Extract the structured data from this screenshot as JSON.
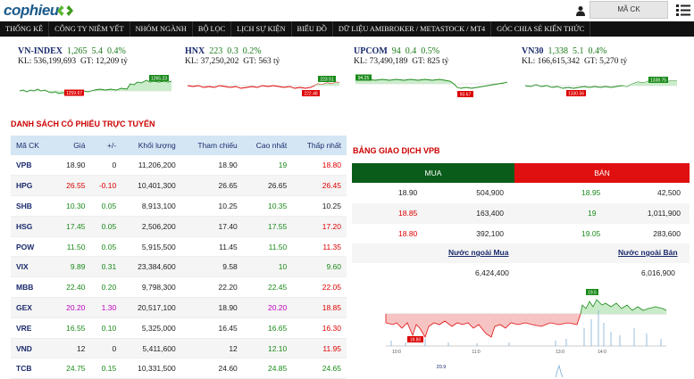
{
  "header": {
    "logo": "cophieu",
    "search_box": "MÃ CK"
  },
  "nav": [
    "THỐNG KÊ",
    "CÔNG TY NIÊM YẾT",
    "NHÓM NGÀNH",
    "BỘ LỌC",
    "LỊCH SỰ KIỆN",
    "BIỂU ĐỒ",
    "DỮ LIỆU AMIBROKER / METASTOCK / MT4",
    "GÓC CHIA SẺ KIẾN THỨC"
  ],
  "indices": [
    {
      "name": "VN-INDEX",
      "value": "1,265",
      "change": "5.4",
      "pct": "0.4%",
      "kl": "KL: 536,199,693",
      "gt": "GT: 12,209 tỷ",
      "lo": "1259.67",
      "hi": "1265.23"
    },
    {
      "name": "HNX",
      "value": "223",
      "change": "0.3",
      "pct": "0.2%",
      "kl": "KL: 37,250,202",
      "gt": "GT: 563 tỷ",
      "lo": "222.48",
      "hi": "223.51"
    },
    {
      "name": "UPCOM",
      "value": "94",
      "change": "0.4",
      "pct": "0.5%",
      "kl": "KL: 73,490,189",
      "gt": "GT: 825 tỷ",
      "lo": "93.67",
      "hi": "94.25"
    },
    {
      "name": "VN30",
      "value": "1,338",
      "change": "5.1",
      "pct": "0.4%",
      "kl": "KL: 166,615,342",
      "gt": "GT: 5,270 tỷ",
      "lo": "1330.56",
      "hi": "1338.75"
    }
  ],
  "stocks_title": "DANH SÁCH CỔ PHIẾU TRỰC TUYẾN",
  "stocks_columns": [
    "Mã CK",
    "Giá",
    "+/-",
    "Khối lượng",
    "Tham chiếu",
    "Cao nhất",
    "Thấp nhất"
  ],
  "stocks": [
    {
      "c": [
        "VPB",
        "18.90",
        "0",
        "11,206,200",
        "18.90",
        "19",
        "18.80"
      ],
      "k": [
        "n",
        "k",
        "k",
        "k",
        "k",
        "g",
        "r"
      ]
    },
    {
      "c": [
        "HPG",
        "26.55",
        "-0.10",
        "10,401,300",
        "26.65",
        "26.65",
        "26.45"
      ],
      "k": [
        "n",
        "r",
        "r",
        "k",
        "k",
        "k",
        "r"
      ]
    },
    {
      "c": [
        "SHB",
        "10.30",
        "0.05",
        "8,913,100",
        "10.25",
        "10.35",
        "10.25"
      ],
      "k": [
        "n",
        "g",
        "g",
        "k",
        "k",
        "g",
        "k"
      ]
    },
    {
      "c": [
        "HSG",
        "17.45",
        "0.05",
        "2,506,200",
        "17.40",
        "17.55",
        "17.20"
      ],
      "k": [
        "n",
        "g",
        "g",
        "k",
        "k",
        "g",
        "r"
      ]
    },
    {
      "c": [
        "POW",
        "11.50",
        "0.05",
        "5,915,500",
        "11.45",
        "11.50",
        "11.35"
      ],
      "k": [
        "n",
        "g",
        "g",
        "k",
        "k",
        "g",
        "r"
      ]
    },
    {
      "c": [
        "VIX",
        "9.89",
        "0.31",
        "23,384,600",
        "9.58",
        "10",
        "9.60"
      ],
      "k": [
        "n",
        "g",
        "g",
        "k",
        "k",
        "g",
        "g"
      ]
    },
    {
      "c": [
        "MBB",
        "22.40",
        "0.20",
        "9,798,300",
        "22.20",
        "22.45",
        "22.05"
      ],
      "k": [
        "n",
        "g",
        "g",
        "k",
        "k",
        "g",
        "r"
      ]
    },
    {
      "c": [
        "GEX",
        "20.20",
        "1.30",
        "20,517,100",
        "18.90",
        "20.20",
        "18.85"
      ],
      "k": [
        "n",
        "p",
        "p",
        "k",
        "k",
        "p",
        "r"
      ]
    },
    {
      "c": [
        "VRE",
        "16.55",
        "0.10",
        "5,325,000",
        "16.45",
        "16.65",
        "16.30"
      ],
      "k": [
        "n",
        "g",
        "g",
        "k",
        "k",
        "g",
        "r"
      ]
    },
    {
      "c": [
        "VND",
        "12",
        "0",
        "5,411,600",
        "12",
        "12.10",
        "11.95"
      ],
      "k": [
        "n",
        "k",
        "k",
        "k",
        "k",
        "g",
        "r"
      ]
    },
    {
      "c": [
        "TCB",
        "24.75",
        "0.15",
        "10,331,500",
        "24.60",
        "24.85",
        "24.65"
      ],
      "k": [
        "n",
        "g",
        "g",
        "k",
        "k",
        "g",
        "g"
      ]
    }
  ],
  "orderbook": {
    "title": "BẢNG GIAO DỊCH VPB",
    "buy_label": "MUA",
    "sell_label": "BÁN",
    "rows": [
      {
        "bp": "18.90",
        "bv": "504,900",
        "sp": "18.95",
        "sv": "42,500",
        "bk": "k",
        "sk": "g"
      },
      {
        "bp": "18.85",
        "bv": "163,400",
        "sp": "19",
        "sv": "1,011,900",
        "bk": "r",
        "sk": "g"
      },
      {
        "bp": "18.80",
        "bv": "392,100",
        "sp": "19.05",
        "sv": "283,600",
        "bk": "r",
        "sk": "g"
      }
    ],
    "foreign_buy_label": "Nước ngoài Mua",
    "foreign_sell_label": "Nước ngoài Bán",
    "foreign_buy": "6,424,400",
    "foreign_sell": "6,016,900"
  },
  "intraday": {
    "hi_label": "19.5",
    "lo_label": "18.80",
    "vol_label": "20.9",
    "times": [
      "10:0",
      "11:0",
      "13:0",
      "14:0"
    ]
  },
  "colors": {
    "nav_bg": "#111111",
    "buy_bg": "#0a5c1a",
    "sell_bg": "#e01010",
    "up": "#1a8a1a",
    "down": "#dd0000",
    "ceiling": "#c000c0"
  }
}
